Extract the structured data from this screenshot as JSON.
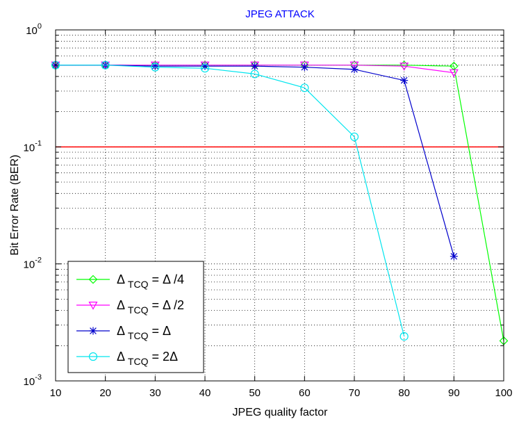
{
  "chart_data": {
    "type": "line",
    "title": "JPEG ATTACK",
    "xlabel": "JPEG quality factor",
    "ylabel": "Bit Error Rate (BER)",
    "yscale": "log",
    "xlim": [
      10,
      100
    ],
    "ylim": [
      0.001,
      1
    ],
    "x_ticks": [
      10,
      20,
      30,
      40,
      50,
      60,
      70,
      80,
      90,
      100
    ],
    "y_ticks": [
      {
        "value": 0.001,
        "base": "10",
        "exp": "-3"
      },
      {
        "value": 0.01,
        "base": "10",
        "exp": "-2"
      },
      {
        "value": 0.1,
        "base": "10",
        "exp": "-1"
      },
      {
        "value": 1,
        "base": "10",
        "exp": "0"
      }
    ],
    "grid": true,
    "legend_position": "bottom-left",
    "reference_line": {
      "y": 0.1,
      "color": "#ff0000"
    },
    "series": [
      {
        "name": "Δ TCQ = Δ/4",
        "legend": {
          "main": "Δ",
          "sub": "TCQ",
          "rhs": " = Δ /4"
        },
        "color": "#00ff00",
        "marker": "diamond",
        "x": [
          10,
          20,
          30,
          40,
          50,
          60,
          70,
          80,
          90,
          100
        ],
        "y": [
          0.5,
          0.5,
          0.5,
          0.5,
          0.5,
          0.5,
          0.5,
          0.5,
          0.49,
          0.0022
        ]
      },
      {
        "name": "Δ TCQ = Δ/2",
        "legend": {
          "main": "Δ",
          "sub": "TCQ",
          "rhs": " = Δ /2"
        },
        "color": "#ff00ff",
        "marker": "triangle-down",
        "x": [
          10,
          20,
          30,
          40,
          50,
          60,
          70,
          80,
          90
        ],
        "y": [
          0.5,
          0.5,
          0.5,
          0.5,
          0.5,
          0.5,
          0.5,
          0.49,
          0.43
        ]
      },
      {
        "name": "Δ TCQ = Δ",
        "legend": {
          "main": "Δ",
          "sub": "TCQ",
          "rhs": " = Δ"
        },
        "color": "#0000cc",
        "marker": "star",
        "x": [
          10,
          20,
          30,
          40,
          50,
          60,
          70,
          80,
          90
        ],
        "y": [
          0.5,
          0.5,
          0.49,
          0.49,
          0.49,
          0.48,
          0.46,
          0.37,
          0.0116
        ]
      },
      {
        "name": "Δ TCQ = 2Δ",
        "legend": {
          "main": "Δ",
          "sub": "TCQ",
          "rhs": " = 2Δ"
        },
        "color": "#00e5ee",
        "marker": "circle",
        "x": [
          10,
          20,
          30,
          40,
          50,
          60,
          70,
          80
        ],
        "y": [
          0.5,
          0.5,
          0.48,
          0.47,
          0.42,
          0.32,
          0.122,
          0.0024
        ]
      }
    ]
  }
}
